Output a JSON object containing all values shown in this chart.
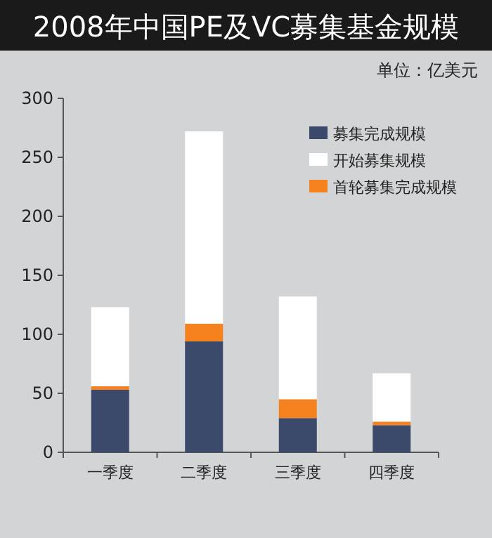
{
  "chart_data": {
    "type": "bar",
    "title": "2008年中国PE及VC募集基金规模",
    "subtitle": "单位：亿美元",
    "stacked": true,
    "legend": "top right",
    "grid": false,
    "categories": [
      "一季度",
      "二季度",
      "三季度",
      "四季度"
    ],
    "series": [
      {
        "name": "募集完成规模",
        "color": "#3b4a6b",
        "values": [
          53,
          94,
          29,
          23
        ]
      },
      {
        "name": "首轮募集完成规模",
        "color": "#f5821f",
        "values": [
          3,
          15,
          16,
          3
        ]
      },
      {
        "name": "开始募集规模",
        "color": "#ffffff",
        "values": [
          67,
          163,
          87,
          41
        ]
      }
    ],
    "ylim": [
      0,
      300
    ],
    "yticks": [
      0,
      50,
      100,
      150,
      200,
      250,
      300
    ]
  }
}
